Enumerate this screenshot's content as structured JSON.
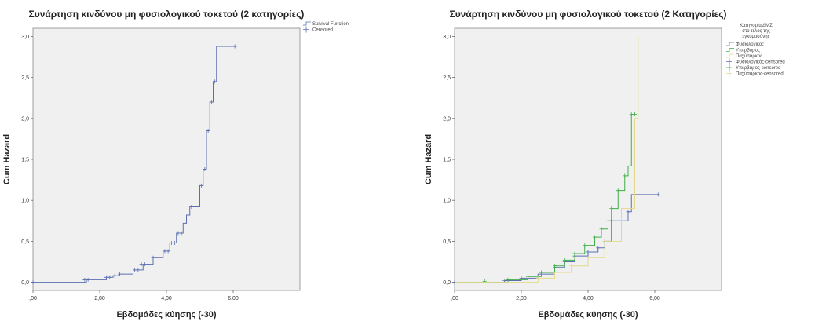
{
  "chart_data": [
    {
      "type": "line",
      "title": "Συνάρτηση κινδύνου μη φυσιολογικού τοκετού (2 κατηγορίες)",
      "xlabel": "Εβδομάδες κύησης (-30)",
      "ylabel": "Cum Hazard",
      "xlim": [
        0,
        8
      ],
      "ylim": [
        -0.1,
        3.1
      ],
      "xticks": [
        0,
        2,
        4,
        6
      ],
      "xtick_labels": [
        ",00",
        "2,00",
        "4,00",
        "6,00"
      ],
      "yticks": [
        0,
        0.5,
        1,
        1.5,
        2,
        2.5,
        3
      ],
      "ytick_labels": [
        "0,0",
        "0,5",
        "1,0",
        "1,5",
        "2,0",
        "2,5",
        "3,0"
      ],
      "legend_title": "",
      "legend": [
        "Survival Function",
        "Censored"
      ],
      "series": [
        {
          "name": "Survival Function",
          "color": "#5b6fb0",
          "x": [
            0,
            1.6,
            2.2,
            2.4,
            2.6,
            3.0,
            3.3,
            3.6,
            3.9,
            4.1,
            4.3,
            4.5,
            4.6,
            4.7,
            5.0,
            5.1,
            5.2,
            5.3,
            5.4,
            5.5,
            6.1
          ],
          "y": [
            0,
            0.03,
            0.06,
            0.08,
            0.1,
            0.15,
            0.22,
            0.3,
            0.38,
            0.48,
            0.6,
            0.72,
            0.82,
            0.92,
            1.18,
            1.38,
            1.85,
            2.2,
            2.45,
            2.88,
            2.88
          ],
          "censored_x": [
            0,
            1.55,
            1.65,
            2.2,
            2.3,
            2.45,
            2.6,
            3.05,
            3.15,
            3.25,
            3.35,
            3.45,
            3.6,
            3.95,
            4.05,
            4.15,
            4.25,
            4.35,
            4.45,
            4.65,
            4.75,
            5.05,
            5.15,
            5.25,
            5.35,
            5.45,
            6.05
          ],
          "censored_y": [
            0,
            0.03,
            0.03,
            0.06,
            0.06,
            0.08,
            0.1,
            0.15,
            0.15,
            0.22,
            0.22,
            0.22,
            0.3,
            0.38,
            0.38,
            0.48,
            0.48,
            0.6,
            0.6,
            0.82,
            0.92,
            1.18,
            1.38,
            1.85,
            2.2,
            2.45,
            2.88
          ]
        }
      ]
    },
    {
      "type": "line",
      "title": "Συνάρτηση κινδύνου μη φυσιολογικού τοκετού (2 Κατηγορίες)",
      "xlabel": "Εβδομάδες κύησης (-30)",
      "ylabel": "Cum Hazard",
      "xlim": [
        0,
        8
      ],
      "ylim": [
        -0.1,
        3.1
      ],
      "xticks": [
        0,
        2,
        4,
        6
      ],
      "xtick_labels": [
        ",00",
        "2,00",
        "4,00",
        "6,00"
      ],
      "yticks": [
        0,
        0.5,
        1,
        1.5,
        2,
        2.5,
        3
      ],
      "ytick_labels": [
        "0,0",
        "0,5",
        "1,0",
        "1,5",
        "2,0",
        "2,5",
        "3,0"
      ],
      "legend_title": "Κατηγορία ΔΜΣ στο τέλος της εγκυμοσύνης",
      "legend": [
        "Φυσιολογικός",
        "Υπέρβαρος",
        "Παχύσαρκος",
        "Φυσιολογικός-censored",
        "Υπέρβαρος-censored",
        "Παχύσαρκος-censored"
      ],
      "series": [
        {
          "name": "Φυσιολογικός",
          "color": "#5b6fb0",
          "x": [
            0,
            1.5,
            2.0,
            2.5,
            3.0,
            3.3,
            3.6,
            4.0,
            4.3,
            4.5,
            4.7,
            5.2,
            5.3,
            6.1
          ],
          "y": [
            0,
            0.02,
            0.05,
            0.1,
            0.18,
            0.25,
            0.32,
            0.37,
            0.42,
            0.5,
            0.75,
            0.86,
            1.07,
            1.07
          ],
          "censored_x": [
            0,
            1.5,
            2.0,
            3.0,
            3.3,
            3.6,
            4.0,
            4.3,
            4.5,
            4.7,
            5.2,
            6.1
          ],
          "censored_y": [
            0,
            0.02,
            0.05,
            0.18,
            0.25,
            0.32,
            0.37,
            0.42,
            0.5,
            0.75,
            0.86,
            1.07
          ]
        },
        {
          "name": "Υπέρβαρος",
          "color": "#3fae49",
          "x": [
            0,
            1.6,
            2.2,
            2.6,
            3.0,
            3.3,
            3.6,
            3.9,
            4.2,
            4.4,
            4.6,
            4.7,
            4.9,
            5.1,
            5.2,
            5.3,
            5.4
          ],
          "y": [
            0,
            0.03,
            0.07,
            0.12,
            0.2,
            0.27,
            0.35,
            0.45,
            0.55,
            0.65,
            0.75,
            0.9,
            1.12,
            1.3,
            1.42,
            2.05,
            2.05
          ],
          "censored_x": [
            0.9,
            1.6,
            2.2,
            2.6,
            3.0,
            3.3,
            3.6,
            3.9,
            4.2,
            4.4,
            4.6,
            4.7,
            4.9,
            5.1,
            5.3,
            5.4
          ],
          "censored_y": [
            0.01,
            0.03,
            0.07,
            0.12,
            0.2,
            0.27,
            0.35,
            0.45,
            0.55,
            0.65,
            0.75,
            0.9,
            1.12,
            1.3,
            2.05,
            2.05
          ]
        },
        {
          "name": "Παχύσαρκος",
          "color": "#e3d98a",
          "x": [
            0,
            2.5,
            3.0,
            3.5,
            4.0,
            4.5,
            5.0,
            5.4,
            5.5
          ],
          "y": [
            0,
            0.05,
            0.12,
            0.2,
            0.3,
            0.5,
            0.9,
            2.0,
            3.0
          ],
          "censored_x": [
            2.5,
            3.5,
            4.5
          ],
          "censored_y": [
            0.05,
            0.2,
            0.5
          ]
        }
      ]
    }
  ]
}
